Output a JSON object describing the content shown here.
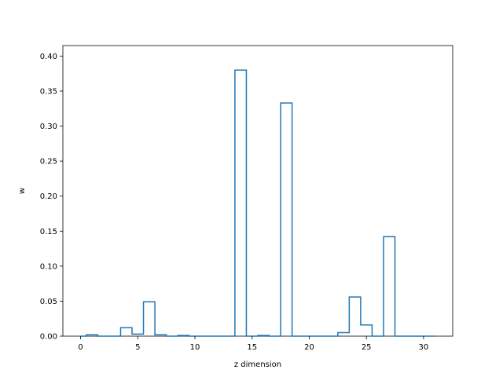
{
  "chart_data": {
    "type": "bar",
    "style": "step-histogram",
    "xlabel": "z dimension",
    "ylabel": "w",
    "xlim": [
      -1.55,
      32.55
    ],
    "ylim": [
      0,
      0.415
    ],
    "xticks": [
      0,
      5,
      10,
      15,
      20,
      25,
      30
    ],
    "yticks": [
      0.0,
      0.05,
      0.1,
      0.15,
      0.2,
      0.25,
      0.3,
      0.35,
      0.4
    ],
    "xtick_labels": [
      "0",
      "5",
      "10",
      "15",
      "20",
      "25",
      "30"
    ],
    "ytick_labels": [
      "0.00",
      "0.05",
      "0.10",
      "0.15",
      "0.20",
      "0.25",
      "0.30",
      "0.35",
      "0.40"
    ],
    "x": [
      0,
      1,
      2,
      3,
      4,
      5,
      6,
      7,
      8,
      9,
      10,
      11,
      12,
      13,
      14,
      15,
      16,
      17,
      18,
      19,
      20,
      21,
      22,
      23,
      24,
      25,
      26,
      27,
      28,
      29,
      30,
      31
    ],
    "values": [
      0.0,
      0.002,
      0.0,
      0.0,
      0.012,
      0.003,
      0.049,
      0.002,
      0.0,
      0.001,
      0.0,
      0.0,
      0.0,
      0.0,
      0.38,
      0.0,
      0.001,
      0.0,
      0.333,
      0.0,
      0.0,
      0.0,
      0.0,
      0.005,
      0.056,
      0.016,
      0.0,
      0.142,
      0.0,
      0.0,
      0.0,
      0.0
    ],
    "color": "#1f77b4",
    "grid": false
  }
}
